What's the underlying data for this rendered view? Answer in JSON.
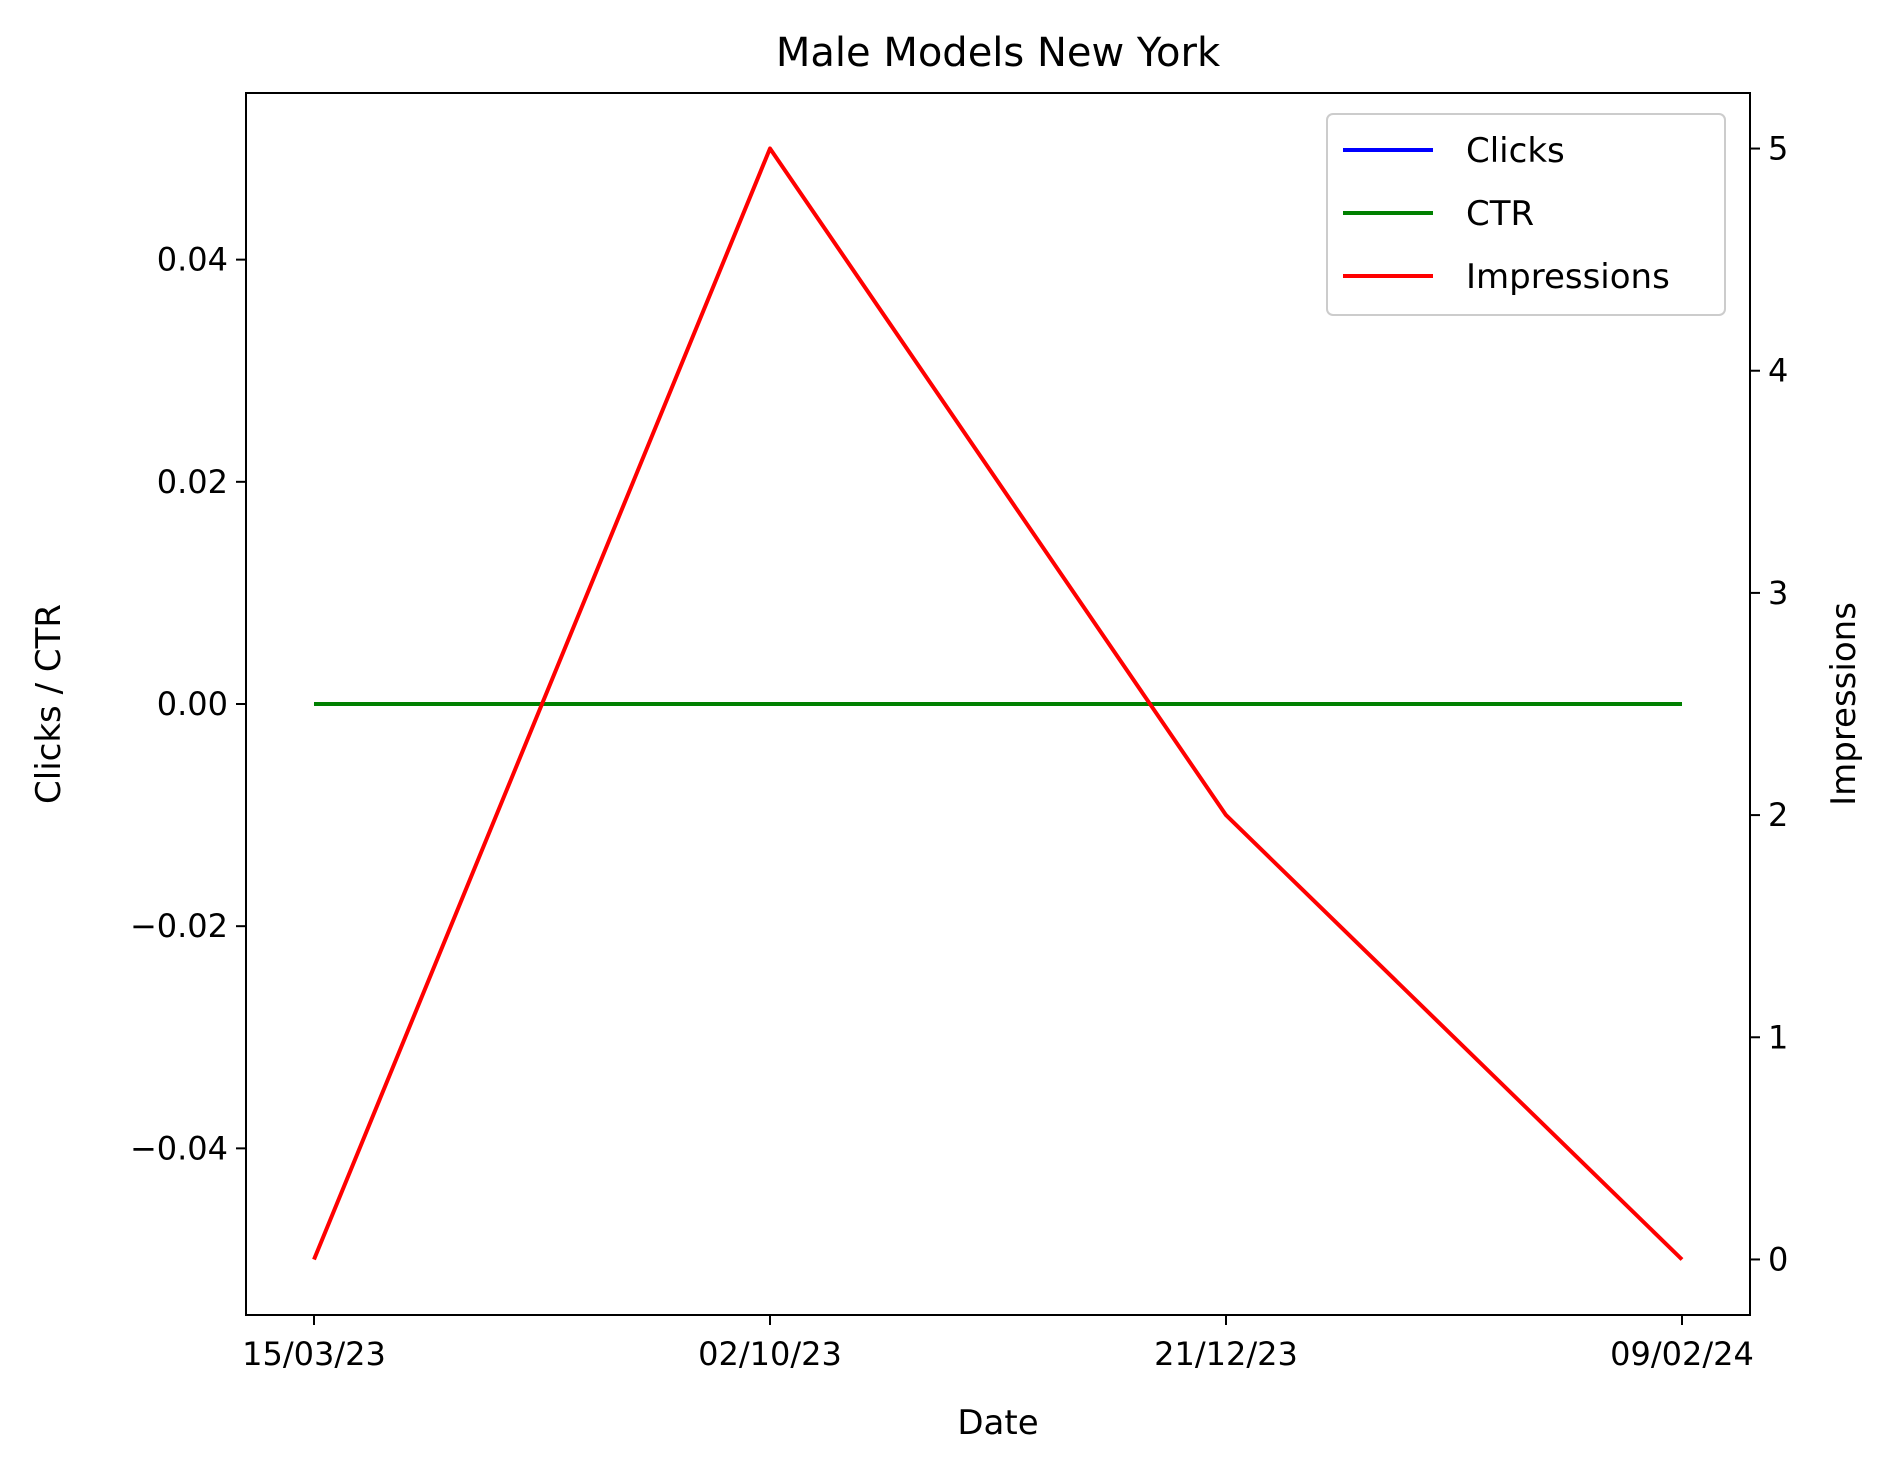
{
  "chart_data": {
    "type": "line",
    "title": "Male Models New York",
    "xlabel": "Date",
    "ylabel_left": "Clicks / CTR",
    "ylabel_right": "Impressions",
    "categories": [
      "15/03/23",
      "02/10/23",
      "21/12/23",
      "09/02/24"
    ],
    "series": [
      {
        "name": "Clicks",
        "axis": "left",
        "color": "#0000ff",
        "values": [
          0,
          0,
          0,
          0
        ]
      },
      {
        "name": "CTR",
        "axis": "left",
        "color": "#008000",
        "values": [
          0,
          0,
          0,
          0
        ]
      },
      {
        "name": "Impressions",
        "axis": "right",
        "color": "#ff0000",
        "values": [
          0,
          5,
          2,
          0
        ]
      }
    ],
    "ylim_left": [
      -0.055,
      0.055
    ],
    "ylim_right": [
      -0.25,
      5.25
    ],
    "yticks_left": [
      -0.04,
      -0.02,
      0.0,
      0.02,
      0.04
    ],
    "ytick_labels_left": [
      "−0.04",
      "−0.02",
      "0.00",
      "0.02",
      "0.04"
    ],
    "yticks_right": [
      0,
      1,
      2,
      3,
      4,
      5
    ],
    "ytick_labels_right": [
      "0",
      "1",
      "2",
      "3",
      "4",
      "5"
    ],
    "grid": false,
    "legend_position": "top-right"
  }
}
